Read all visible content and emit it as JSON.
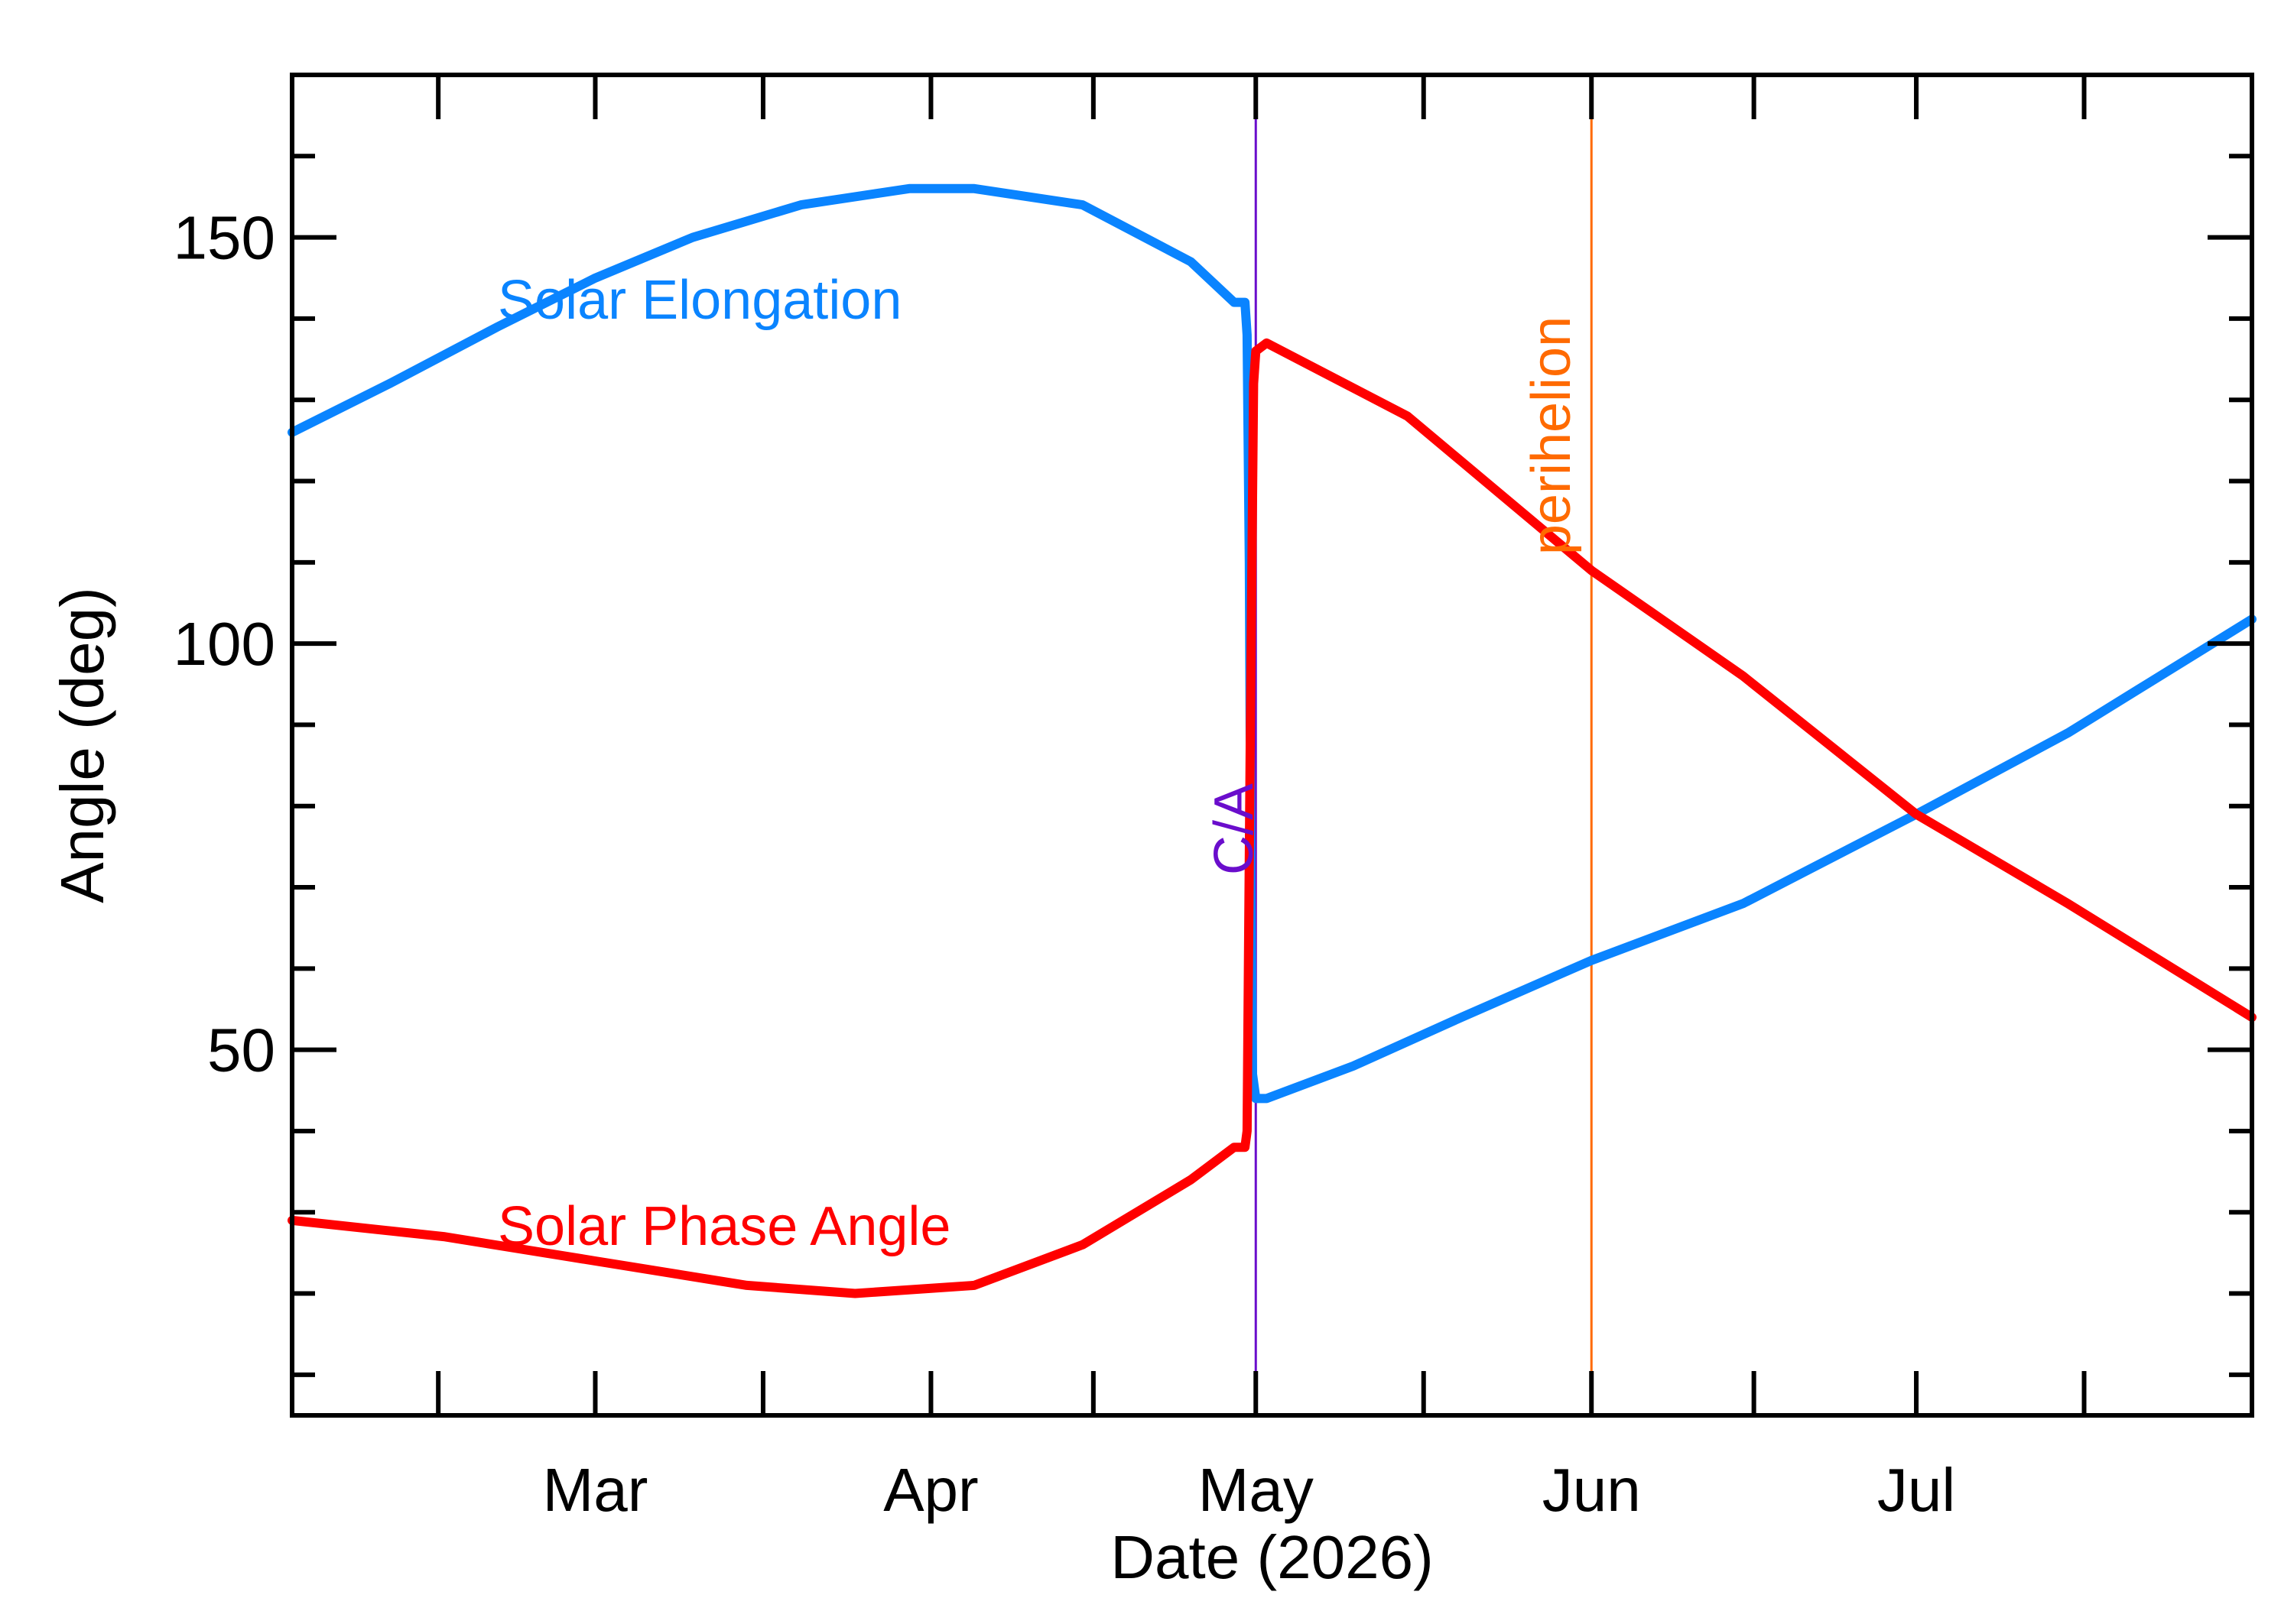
{
  "chart_data": {
    "type": "line",
    "xlabel": "Date (2026)",
    "ylabel": "Angle (deg)",
    "xlim": [
      "2026-02-01",
      "2026-08-01"
    ],
    "ylim": [
      5,
      170
    ],
    "x_ticks": [
      {
        "date": "2026-03-01",
        "label": "Mar"
      },
      {
        "date": "2026-04-01",
        "label": "Apr"
      },
      {
        "date": "2026-05-01",
        "label": "May"
      },
      {
        "date": "2026-06-01",
        "label": "Jun"
      },
      {
        "date": "2026-07-01",
        "label": "Jul"
      }
    ],
    "y_major_ticks": [
      50,
      100,
      150
    ],
    "y_minor_step": 10,
    "grid": false,
    "colors": {
      "elongation": "#0a84ff",
      "phase": "#ff0000",
      "closest_approach": "#6a0dcc",
      "perihelion": "#ff6a00",
      "axis": "#000000"
    },
    "series": [
      {
        "name": "Solar Elongation",
        "color": "#0a84ff",
        "points": [
          [
            "2026-02-01",
            126
          ],
          [
            "2026-02-10",
            132
          ],
          [
            "2026-02-20",
            139
          ],
          [
            "2026-03-01",
            145
          ],
          [
            "2026-03-10",
            150
          ],
          [
            "2026-03-20",
            154
          ],
          [
            "2026-03-30",
            156
          ],
          [
            "2026-04-05",
            156
          ],
          [
            "2026-04-15",
            154
          ],
          [
            "2026-04-25",
            147
          ],
          [
            "2026-04-29",
            142
          ],
          [
            "2026-04-30",
            142
          ],
          [
            "2026-04-30.2",
            138
          ],
          [
            "2026-04-30.4",
            110
          ],
          [
            "2026-04-30.55",
            70
          ],
          [
            "2026-04-30.7",
            47
          ],
          [
            "2026-05-01",
            44
          ],
          [
            "2026-05-02",
            44
          ],
          [
            "2026-05-10",
            48
          ],
          [
            "2026-05-20",
            54
          ],
          [
            "2026-06-01",
            61
          ],
          [
            "2026-06-15",
            68
          ],
          [
            "2026-07-01",
            79
          ],
          [
            "2026-07-15",
            89
          ],
          [
            "2026-08-01",
            103
          ]
        ]
      },
      {
        "name": "Solar Phase Angle",
        "color": "#ff0000",
        "points": [
          [
            "2026-02-01",
            29
          ],
          [
            "2026-02-15",
            27
          ],
          [
            "2026-03-01",
            24
          ],
          [
            "2026-03-15",
            21
          ],
          [
            "2026-03-25",
            20
          ],
          [
            "2026-04-05",
            21
          ],
          [
            "2026-04-15",
            26
          ],
          [
            "2026-04-25",
            34
          ],
          [
            "2026-04-29",
            38
          ],
          [
            "2026-04-30",
            38
          ],
          [
            "2026-04-30.2",
            40
          ],
          [
            "2026-04-30.5",
            90
          ],
          [
            "2026-04-30.8",
            132
          ],
          [
            "2026-05-01",
            136
          ],
          [
            "2026-05-02",
            137
          ],
          [
            "2026-05-15",
            128
          ],
          [
            "2026-06-01",
            109
          ],
          [
            "2026-06-15",
            96
          ],
          [
            "2026-07-01",
            79
          ],
          [
            "2026-07-15",
            68
          ],
          [
            "2026-08-01",
            54
          ]
        ]
      }
    ],
    "annotations": [
      {
        "text": "Solar Elongation",
        "color": "#0a84ff",
        "date": "2026-02-20",
        "value": 140
      },
      {
        "text": "Solar Phase Angle",
        "color": "#ff0000",
        "date": "2026-02-20",
        "value": 26
      },
      {
        "text": "C/A",
        "color": "#6a0dcc",
        "date": "2026-04-30",
        "orientation": "vertical"
      },
      {
        "text": "perihelion",
        "color": "#ff6a00",
        "date": "2026-05-30",
        "orientation": "vertical"
      }
    ],
    "events": [
      {
        "label": "C/A",
        "date": "2026-05-01",
        "color": "#6a0dcc"
      },
      {
        "label": "perihelion",
        "date": "2026-06-01",
        "color": "#ff6a00"
      }
    ]
  }
}
